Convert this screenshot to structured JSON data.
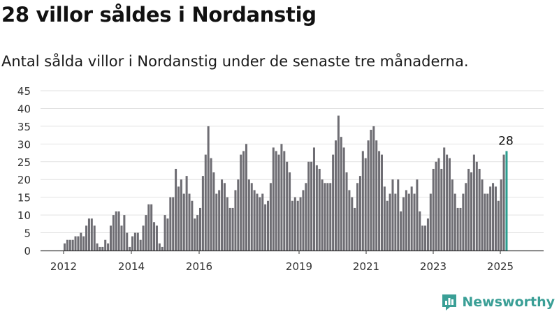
{
  "header": {
    "title": "28 villor såldes i Nordanstig",
    "subtitle": "Antal sålda villor i Nordanstig under de senaste tre månaderna."
  },
  "brand": {
    "name": "Newsworthy"
  },
  "colors": {
    "bar": "#6e6d73",
    "highlight": "#2a9d8f",
    "grid": "#e2e2e2",
    "axis": "#333333",
    "brand": "#3a9f96"
  },
  "chart_data": {
    "type": "bar",
    "title": "",
    "xlabel": "",
    "ylabel": "",
    "ylim": [
      0,
      45
    ],
    "yticks": [
      0,
      5,
      10,
      15,
      20,
      25,
      30,
      35,
      40,
      45
    ],
    "xtick_labels": [
      "2012",
      "2014",
      "2016",
      "2019",
      "2021",
      "2023",
      "2025"
    ],
    "grid": true,
    "highlight_last": true,
    "last_value_label": "28",
    "values": [
      2,
      3,
      3,
      3,
      4,
      4,
      5,
      4,
      7,
      9,
      9,
      7,
      2,
      1,
      1,
      3,
      2,
      7,
      10,
      11,
      11,
      7,
      10,
      5,
      1,
      4,
      5,
      5,
      3,
      7,
      10,
      13,
      13,
      8,
      7,
      2,
      1,
      10,
      9,
      15,
      15,
      23,
      18,
      20,
      16,
      21,
      16,
      14,
      9,
      10,
      12,
      21,
      27,
      35,
      26,
      22,
      16,
      17,
      20,
      19,
      15,
      12,
      12,
      17,
      20,
      27,
      28,
      30,
      20,
      19,
      17,
      16,
      15,
      16,
      13,
      14,
      19,
      29,
      28,
      27,
      30,
      28,
      25,
      22,
      14,
      15,
      14,
      15,
      17,
      19,
      25,
      25,
      29,
      24,
      23,
      20,
      19,
      19,
      19,
      27,
      31,
      38,
      32,
      29,
      22,
      17,
      15,
      12,
      19,
      21,
      28,
      26,
      31,
      34,
      35,
      31,
      28,
      27,
      18,
      14,
      16,
      20,
      16,
      20,
      11,
      15,
      17,
      16,
      18,
      16,
      20,
      11,
      7,
      7,
      9,
      16,
      23,
      25,
      26,
      23,
      29,
      27,
      26,
      20,
      16,
      12,
      12,
      16,
      19,
      23,
      22,
      27,
      25,
      23,
      20,
      16,
      16,
      18,
      19,
      18,
      14,
      20,
      27,
      28
    ]
  }
}
